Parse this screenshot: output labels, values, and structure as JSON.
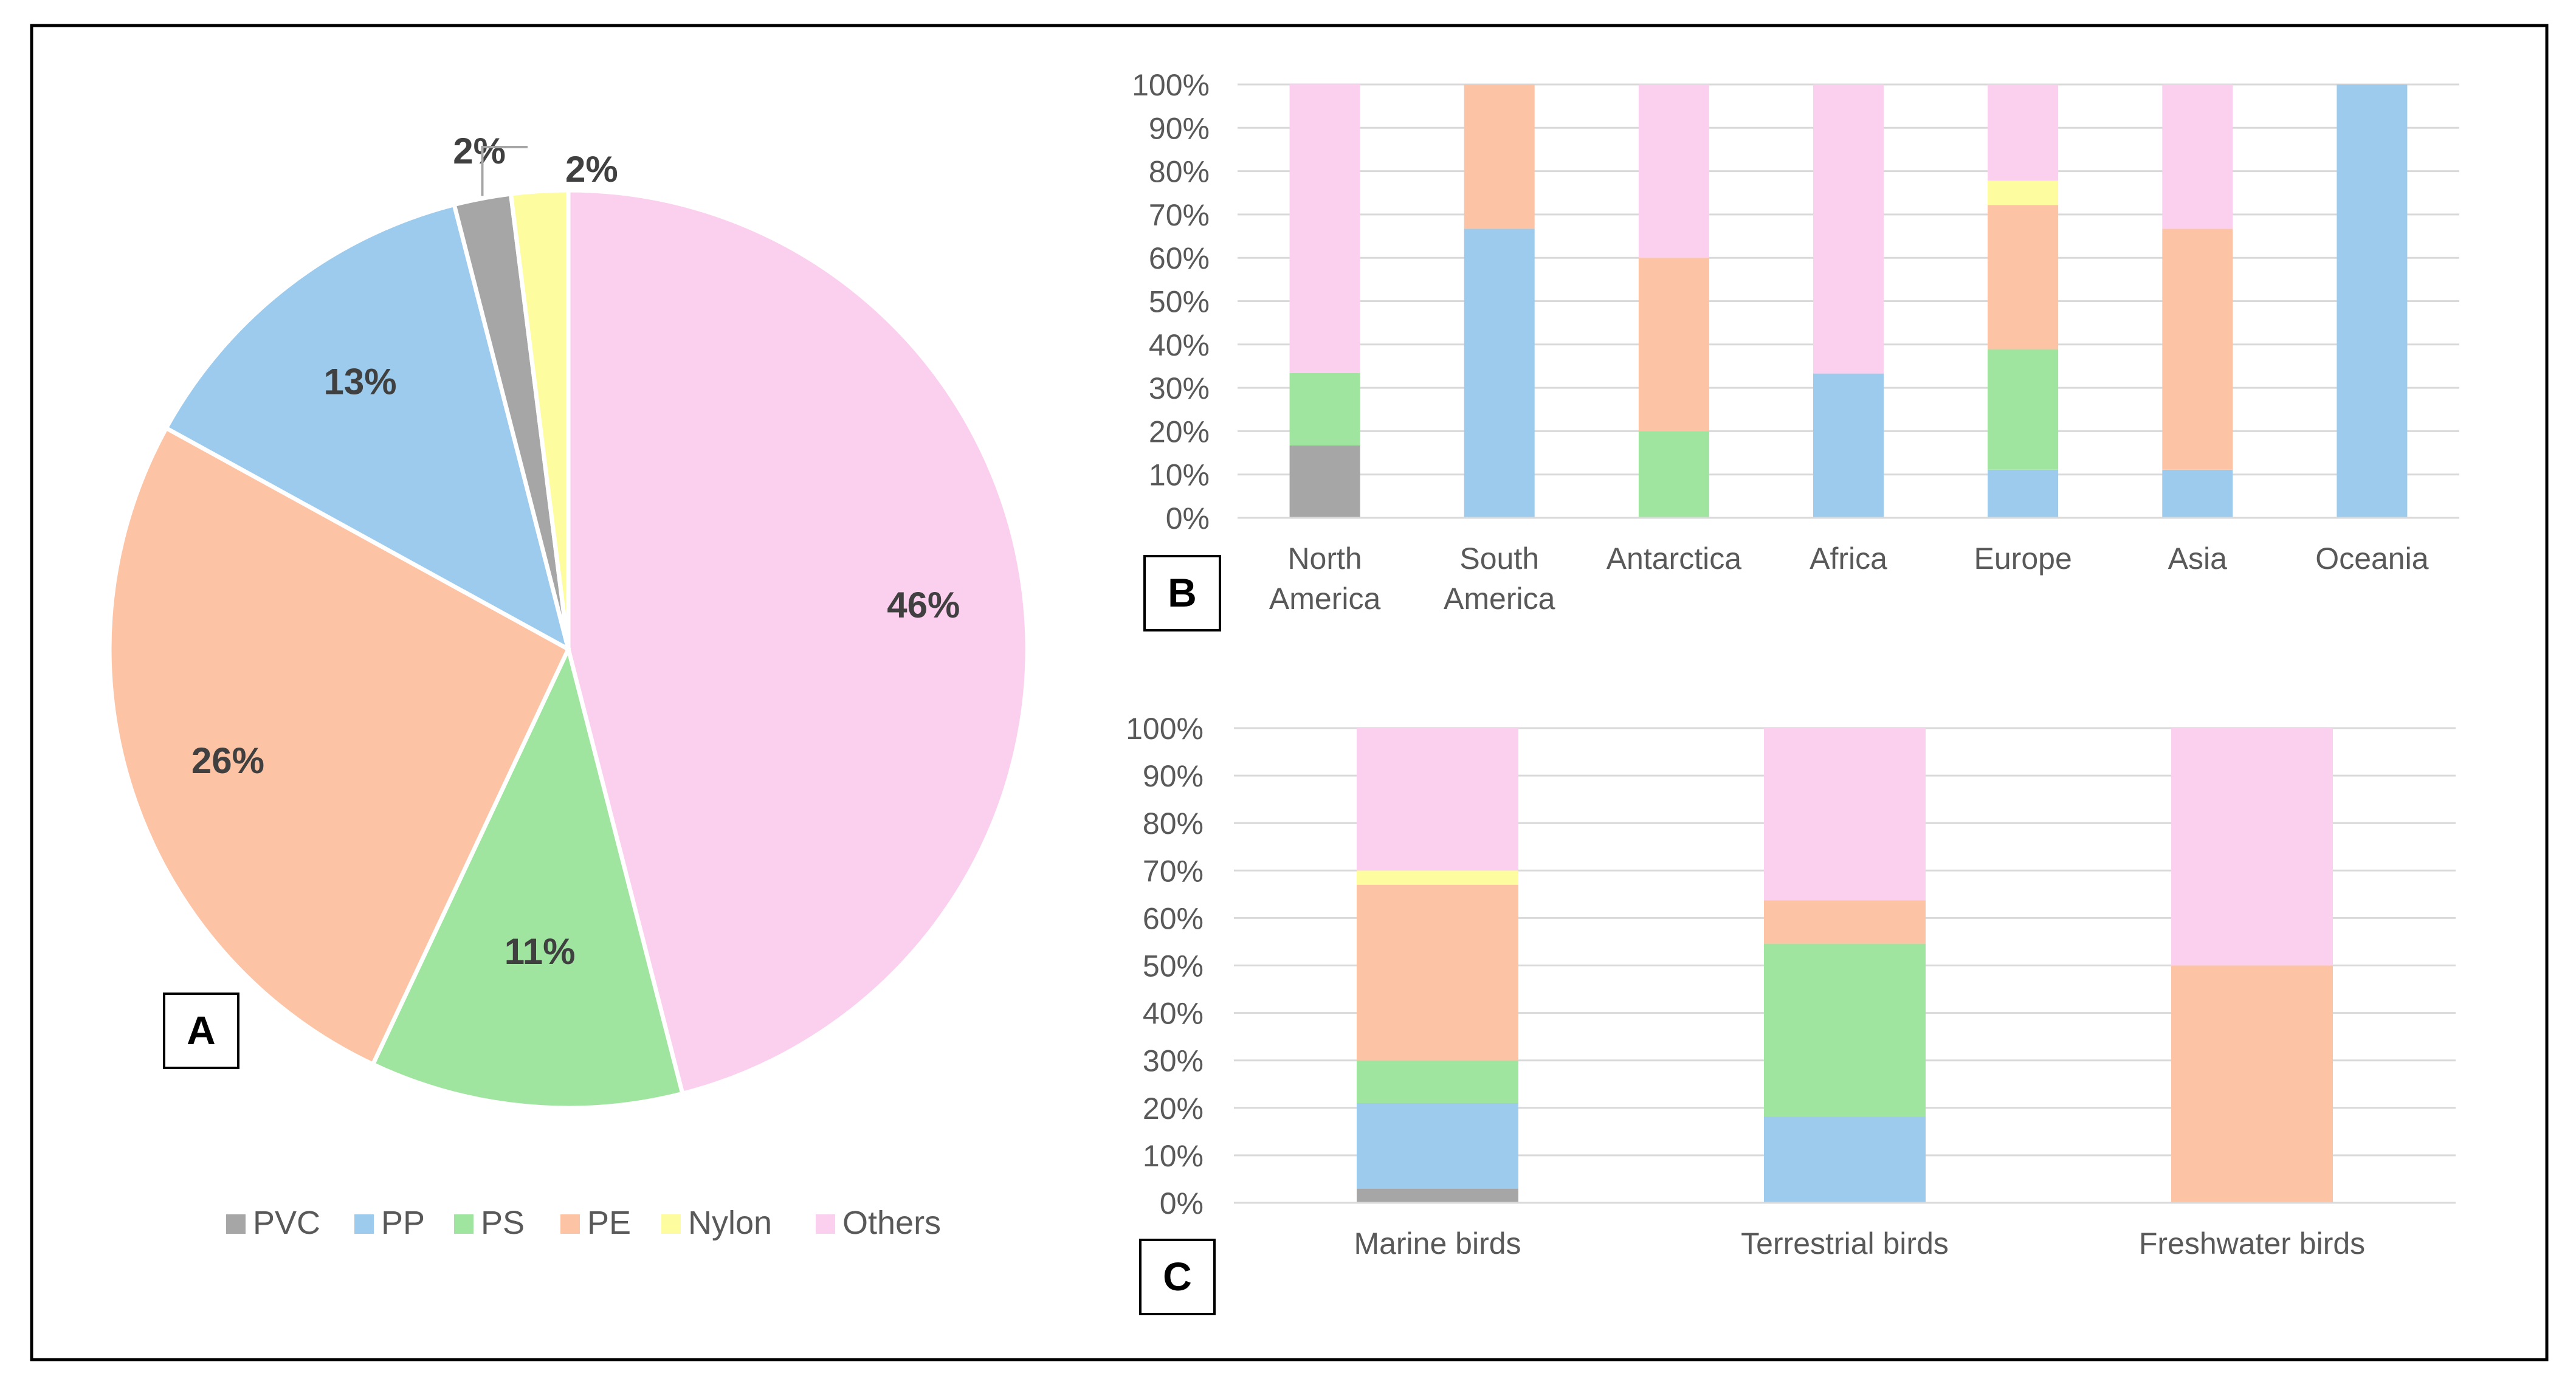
{
  "colors": {
    "PVC": "#a6a6a6",
    "PP": "#9ccbed",
    "PS": "#9fe49f",
    "PE": "#fdc3a5",
    "Nylon": "#fdfc9f",
    "Others": "#fbd0ee",
    "grid": "#d9d9d9",
    "axis_text": "#595959",
    "pie_label": "#404040"
  },
  "legend": [
    "PVC",
    "PP",
    "PS",
    "PE",
    "Nylon",
    "Others"
  ],
  "panel_labels": {
    "a": "A",
    "b": "B",
    "c": "C"
  },
  "chart_data": [
    {
      "id": "A",
      "type": "pie",
      "title": "",
      "slices": [
        {
          "name": "Others",
          "value": 46,
          "label": "46%"
        },
        {
          "name": "PS",
          "value": 11,
          "label": "11%"
        },
        {
          "name": "PE",
          "value": 26,
          "label": "26%"
        },
        {
          "name": "PP",
          "value": 13,
          "label": "13%"
        },
        {
          "name": "PVC",
          "value": 2,
          "label": "2%"
        },
        {
          "name": "Nylon",
          "value": 2,
          "label": "2%"
        }
      ],
      "legend_position": "bottom"
    },
    {
      "id": "B",
      "type": "bar",
      "stacked": true,
      "percent": true,
      "categories": [
        [
          "North",
          "America"
        ],
        [
          "South",
          "America"
        ],
        [
          "Antarctica"
        ],
        [
          "Africa"
        ],
        [
          "Europe"
        ],
        [
          "Asia"
        ],
        [
          "Oceania"
        ]
      ],
      "series": [
        {
          "name": "PVC",
          "values": [
            16.7,
            0,
            0,
            0,
            0,
            0,
            0
          ]
        },
        {
          "name": "PP",
          "values": [
            0,
            66.7,
            0,
            33.3,
            11.1,
            11.1,
            100
          ]
        },
        {
          "name": "PS",
          "values": [
            16.7,
            0,
            20,
            0,
            27.8,
            0,
            0
          ]
        },
        {
          "name": "PE",
          "values": [
            0,
            33.3,
            40,
            0,
            33.3,
            55.6,
            0
          ]
        },
        {
          "name": "Nylon",
          "values": [
            0,
            0,
            0,
            0,
            5.6,
            0,
            0
          ]
        },
        {
          "name": "Others",
          "values": [
            66.7,
            0,
            40,
            66.7,
            22.2,
            33.3,
            0
          ]
        }
      ],
      "yticks": [
        "0%",
        "10%",
        "20%",
        "30%",
        "40%",
        "50%",
        "60%",
        "70%",
        "80%",
        "90%",
        "100%"
      ],
      "ylim": [
        0,
        100
      ],
      "grid": true
    },
    {
      "id": "C",
      "type": "bar",
      "stacked": true,
      "percent": true,
      "categories": [
        [
          "Marine birds"
        ],
        [
          "Terrestrial birds"
        ],
        [
          "Freshwater birds"
        ]
      ],
      "series": [
        {
          "name": "PVC",
          "values": [
            3,
            0,
            0
          ]
        },
        {
          "name": "PP",
          "values": [
            18,
            18.2,
            0
          ]
        },
        {
          "name": "PS",
          "values": [
            9,
            36.4,
            0
          ]
        },
        {
          "name": "PE",
          "values": [
            37,
            9.1,
            50
          ]
        },
        {
          "name": "Nylon",
          "values": [
            3,
            0,
            0
          ]
        },
        {
          "name": "Others",
          "values": [
            30,
            36.3,
            50
          ]
        }
      ],
      "yticks": [
        "0%",
        "10%",
        "20%",
        "30%",
        "40%",
        "50%",
        "60%",
        "70%",
        "80%",
        "90%",
        "100%"
      ],
      "ylim": [
        0,
        100
      ],
      "grid": true
    }
  ]
}
